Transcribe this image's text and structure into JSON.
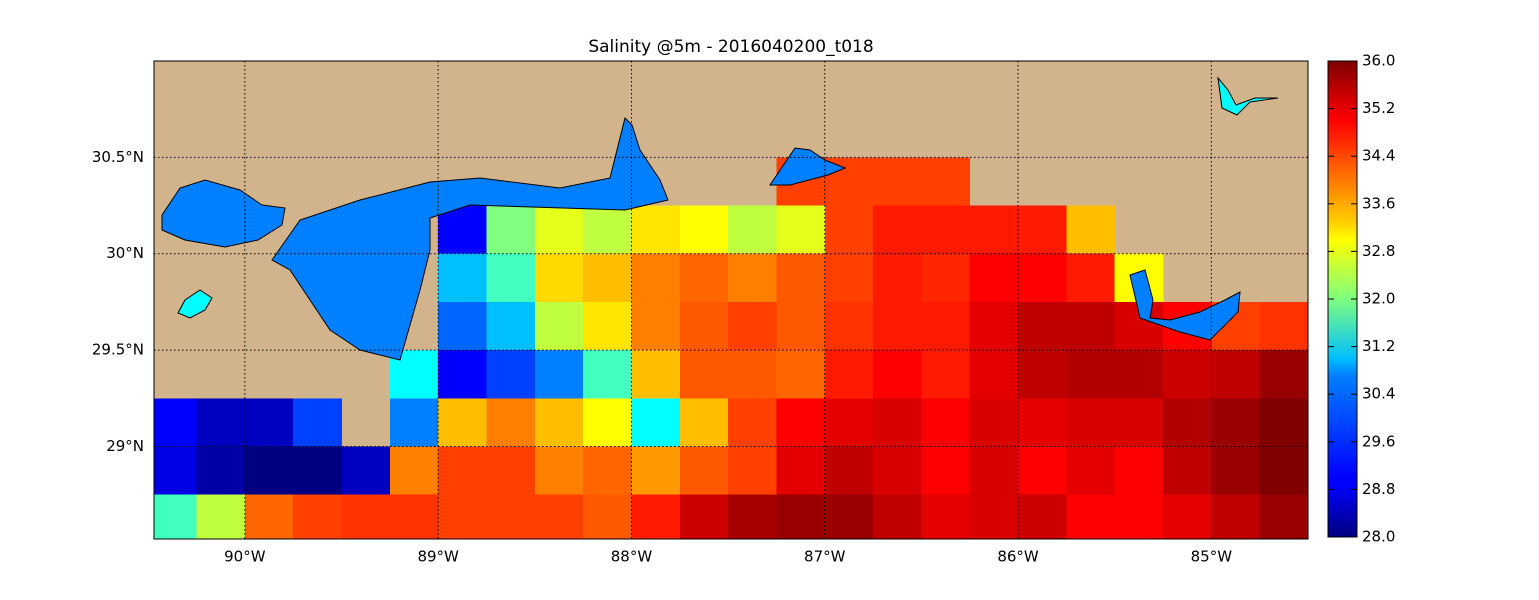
{
  "chart_data": {
    "type": "heatmap",
    "title": "Salinity @5m - 2016040200_t018",
    "xlim": [
      -90.47,
      -84.5
    ],
    "ylim": [
      28.52,
      31.0
    ],
    "xticks": [
      {
        "value": -90,
        "label": "90°W"
      },
      {
        "value": -89,
        "label": "89°W"
      },
      {
        "value": -88,
        "label": "88°W"
      },
      {
        "value": -87,
        "label": "87°W"
      },
      {
        "value": -86,
        "label": "86°W"
      },
      {
        "value": -85,
        "label": "85°W"
      }
    ],
    "yticks": [
      {
        "value": 29,
        "label": "29°N"
      },
      {
        "value": 29.5,
        "label": "29.5°N"
      },
      {
        "value": 30,
        "label": "30°N"
      },
      {
        "value": 30.5,
        "label": "30.5°N"
      }
    ],
    "grid": true,
    "land_color": "#d2b48c",
    "colormap": "jet",
    "colorbar": {
      "lim": [
        28,
        36
      ],
      "ticks": [
        {
          "value": 28,
          "label": "28.0"
        },
        28.8,
        29.6,
        30.4,
        31.2,
        {
          "value": 32,
          "label": "32.0"
        },
        32.8,
        33.6,
        34.4,
        35.2,
        {
          "value": 36,
          "label": "36.0"
        }
      ]
    },
    "lon": [
      -90.375,
      -90.125,
      -89.875,
      -89.625,
      -89.375,
      -89.125,
      -88.875,
      -88.625,
      -88.375,
      -88.125,
      -87.875,
      -87.625,
      -87.375,
      -87.125,
      -86.875,
      -86.625,
      -86.375,
      -86.125,
      -85.875,
      -85.625,
      -85.375,
      -85.125,
      -84.875,
      -84.625
    ],
    "lat": [
      30.375,
      30.125,
      29.875,
      29.625,
      29.375,
      29.125,
      28.875,
      28.625
    ],
    "values": [
      [
        null,
        null,
        null,
        null,
        null,
        null,
        null,
        null,
        null,
        null,
        null,
        null,
        null,
        34.5,
        34.5,
        34.5,
        34.5,
        null,
        null,
        null,
        null,
        null,
        null,
        null
      ],
      [
        null,
        null,
        null,
        null,
        null,
        null,
        29,
        32,
        32.8,
        32.5,
        33.2,
        33,
        32.5,
        32.8,
        34.5,
        34.8,
        34.8,
        34.8,
        34.8,
        33.5,
        null,
        null,
        null,
        null
      ],
      [
        null,
        null,
        null,
        null,
        null,
        null,
        30.5,
        31.5,
        33.3,
        33.5,
        34,
        34.2,
        34,
        34.3,
        34.5,
        34.8,
        34.7,
        35,
        35,
        34.8,
        33,
        null,
        null,
        null
      ],
      [
        null,
        null,
        null,
        null,
        null,
        null,
        29.8,
        30.5,
        32.5,
        33.2,
        34,
        34.3,
        34.5,
        34.3,
        34.6,
        34.8,
        34.8,
        35.2,
        35.5,
        35.5,
        35.3,
        35,
        34.5,
        34.6
      ],
      [
        null,
        null,
        null,
        null,
        null,
        31,
        29,
        29.5,
        30,
        31.5,
        33.5,
        34.3,
        34.3,
        34.2,
        34.8,
        35,
        34.8,
        35.2,
        35.5,
        35.6,
        35.6,
        35.4,
        35.5,
        35.8
      ],
      [
        29,
        28.5,
        28.5,
        29.5,
        null,
        30,
        33.5,
        34,
        33.5,
        33,
        31,
        33.5,
        34.5,
        35,
        35.2,
        35.3,
        35,
        35.3,
        35.2,
        35.3,
        35.3,
        35.6,
        35.8,
        36
      ],
      [
        28.8,
        28.3,
        28,
        28,
        28.5,
        34,
        34.5,
        34.5,
        34,
        34.2,
        33.8,
        34.3,
        34.5,
        35.2,
        35.5,
        35.3,
        35,
        35.3,
        35,
        35.2,
        35,
        35.5,
        35.8,
        36
      ],
      [
        31.5,
        32.5,
        34.2,
        34.5,
        34.6,
        34.6,
        34.5,
        34.5,
        34.5,
        34.3,
        34.8,
        35.4,
        35.7,
        35.8,
        35.8,
        35.5,
        35.2,
        35.3,
        35.4,
        35,
        35,
        35.2,
        35.5,
        35.8
      ]
    ]
  }
}
